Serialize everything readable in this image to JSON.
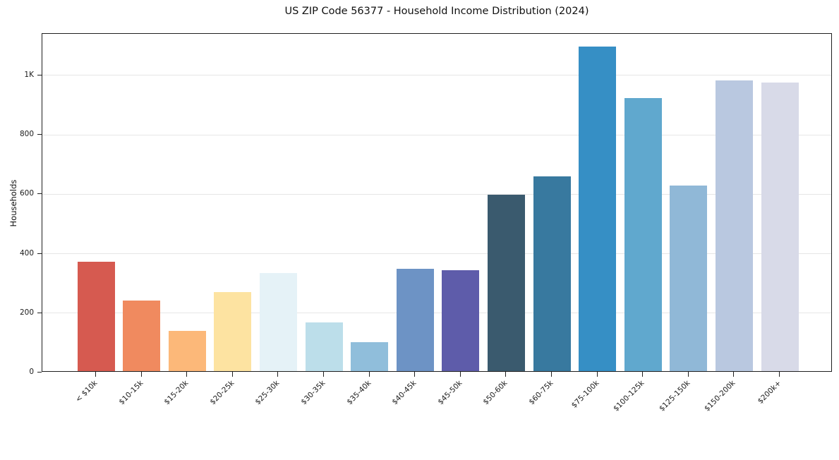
{
  "window": {
    "background": "#ffffff"
  },
  "chart_data": {
    "type": "bar",
    "title": "US ZIP Code 56377 - Household Income Distribution (2024)",
    "xlabel": "",
    "ylabel": "Households",
    "categories": [
      "< $10k",
      "$10-15k",
      "$15-20k",
      "$20-25k",
      "$25-30k",
      "$30-35k",
      "$35-40k",
      "$40-45k",
      "$45-50k",
      "$50-60k",
      "$60-75k",
      "$75-100k",
      "$100-125k",
      "$125-150k",
      "$150-200k",
      "$200k+"
    ],
    "values": [
      368,
      237,
      136,
      265,
      330,
      163,
      97,
      344,
      340,
      594,
      656,
      1092,
      919,
      624,
      978,
      971
    ],
    "bar_colors": [
      "#d65a50",
      "#f08a5f",
      "#fcb879",
      "#fde3a1",
      "#e5f2f7",
      "#bcdeea",
      "#90bedb",
      "#6d93c5",
      "#5e5caa",
      "#3a5a6e",
      "#38799f",
      "#368fc5",
      "#60a8ce",
      "#90b8d7",
      "#b9c8e0",
      "#d8dae8"
    ],
    "ylim": [
      0,
      1140
    ],
    "yticks": [
      {
        "value": 0,
        "label": "0"
      },
      {
        "value": 200,
        "label": "200"
      },
      {
        "value": 400,
        "label": "400"
      },
      {
        "value": 600,
        "label": "600"
      },
      {
        "value": 800,
        "label": "800"
      },
      {
        "value": 1000,
        "label": "1K"
      }
    ],
    "grid": "horizontal",
    "legend": "none",
    "colors": {
      "grid": "#e6e6e6",
      "axis": "#1f1f1f",
      "tick_text": "#1a1a1a",
      "title_text": "#111111",
      "background": "#ffffff"
    }
  }
}
